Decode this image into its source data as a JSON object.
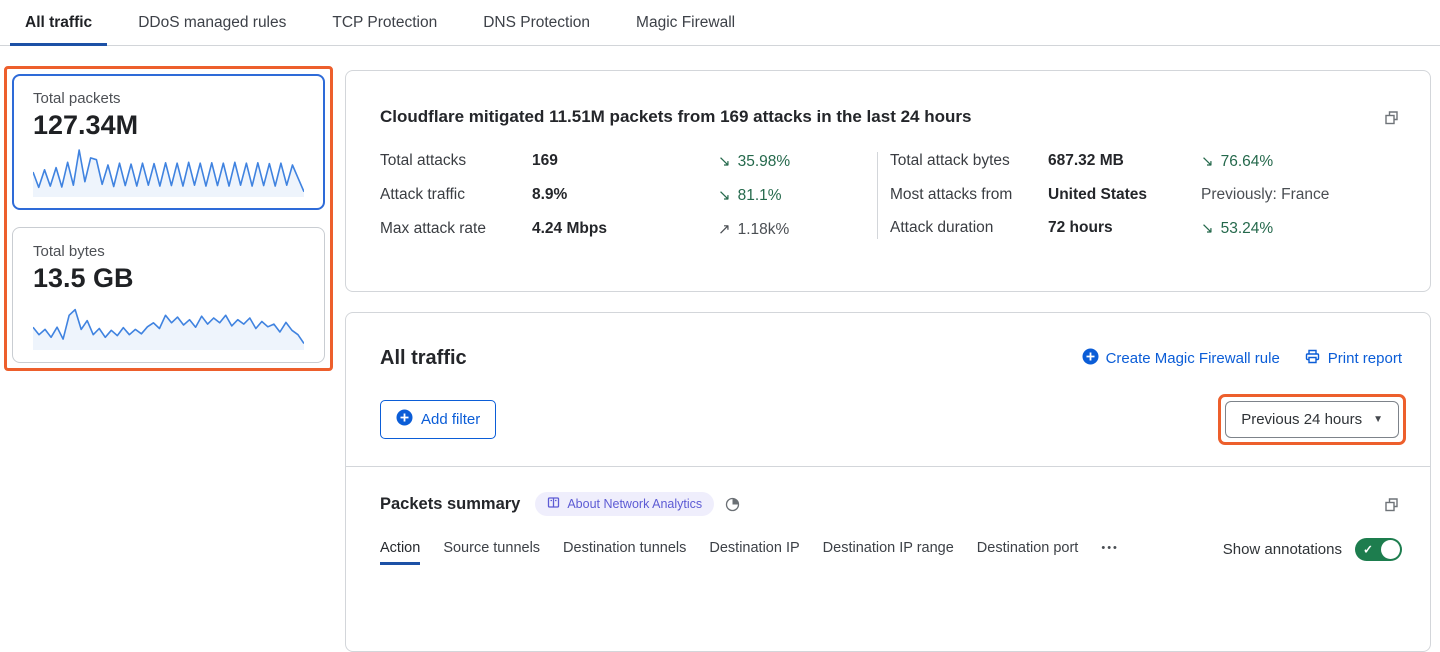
{
  "top_tabs": [
    {
      "label": "All traffic",
      "active": true
    },
    {
      "label": "DDoS managed rules",
      "active": false
    },
    {
      "label": "TCP Protection",
      "active": false
    },
    {
      "label": "DNS Protection",
      "active": false
    },
    {
      "label": "Magic Firewall",
      "active": false
    }
  ],
  "metric_cards": {
    "packets": {
      "label": "Total packets",
      "value": "127.34M",
      "spark": [
        0.5,
        0.15,
        0.55,
        0.18,
        0.6,
        0.16,
        0.72,
        0.2,
        1.0,
        0.28,
        0.82,
        0.78,
        0.22,
        0.66,
        0.17,
        0.7,
        0.19,
        0.68,
        0.18,
        0.7,
        0.2,
        0.69,
        0.18,
        0.71,
        0.19,
        0.7,
        0.18,
        0.72,
        0.2,
        0.7,
        0.18,
        0.71,
        0.19,
        0.7,
        0.18,
        0.72,
        0.2,
        0.7,
        0.18,
        0.71,
        0.19,
        0.69,
        0.18,
        0.7,
        0.2,
        0.66,
        0.35,
        0.05
      ]
    },
    "bytes": {
      "label": "Total bytes",
      "value": "13.5 GB",
      "spark": [
        0.45,
        0.28,
        0.4,
        0.22,
        0.45,
        0.18,
        0.72,
        0.85,
        0.4,
        0.6,
        0.28,
        0.42,
        0.22,
        0.38,
        0.26,
        0.44,
        0.28,
        0.4,
        0.3,
        0.46,
        0.55,
        0.42,
        0.72,
        0.55,
        0.68,
        0.5,
        0.62,
        0.45,
        0.7,
        0.52,
        0.66,
        0.55,
        0.72,
        0.48,
        0.62,
        0.52,
        0.66,
        0.42,
        0.58,
        0.46,
        0.52,
        0.34,
        0.56,
        0.38,
        0.28,
        0.08
      ]
    }
  },
  "attack_summary": {
    "title": "Cloudflare mitigated 11.51M packets from 169 attacks in the last 24 hours",
    "columns": [
      [
        {
          "label": "Total attacks",
          "value": "169",
          "arrow": "↘",
          "delta": "35.98%",
          "tone": "green"
        },
        {
          "label": "Attack traffic",
          "value": "8.9%",
          "arrow": "↘",
          "delta": "81.1%",
          "tone": "green"
        },
        {
          "label": "Max attack rate",
          "value": "4.24 Mbps",
          "arrow": "↗",
          "delta": "1.18k%",
          "tone": "neutral"
        }
      ],
      [
        {
          "label": "Total attack bytes",
          "value": "687.32 MB",
          "arrow": "↘",
          "delta": "76.64%",
          "tone": "green"
        },
        {
          "label": "Most attacks from",
          "value": "United States",
          "arrow": "",
          "delta": "Previously: France",
          "tone": "neutral"
        },
        {
          "label": "Attack duration",
          "value": "72 hours",
          "arrow": "↘",
          "delta": "53.24%",
          "tone": "green"
        }
      ]
    ]
  },
  "traffic_panel": {
    "title": "All traffic",
    "create_rule_label": "Create Magic Firewall rule",
    "print_label": "Print report",
    "add_filter_label": "Add filter",
    "time_range_value": "Previous 24 hours",
    "caret_glyph": "▼"
  },
  "packets_summary": {
    "title": "Packets summary",
    "badge_label": "About Network Analytics",
    "tabs": [
      {
        "label": "Action",
        "active": true
      },
      {
        "label": "Source tunnels",
        "active": false
      },
      {
        "label": "Destination tunnels",
        "active": false
      },
      {
        "label": "Destination IP",
        "active": false
      },
      {
        "label": "Destination IP range",
        "active": false
      },
      {
        "label": "Destination port",
        "active": false
      }
    ],
    "overflow_glyph": "•••",
    "show_annotations_label": "Show annotations",
    "toggle_check_glyph": "✓",
    "annotations_on": true
  },
  "colors": {
    "link_blue": "#0b5dd7",
    "tab_underline_blue": "#1c51a6",
    "delta_green": "#25694c",
    "toggle_green": "#1d7d4e",
    "highlight_orange": "#ed5f2c",
    "selected_card_blue": "#2e6bd8",
    "sparkline_blue": "#4083e0",
    "badge_purple": "#5d5bd4"
  }
}
